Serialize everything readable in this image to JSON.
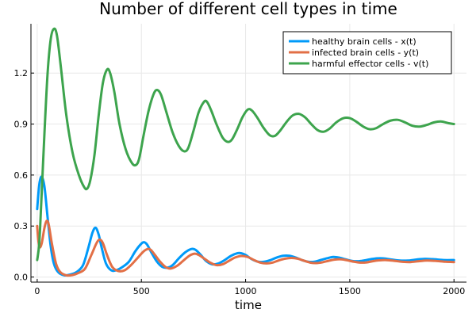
{
  "chart_data": {
    "type": "line",
    "title": "Number of different cell types in time",
    "xlabel": "time",
    "ylabel": "",
    "xlim": [
      -30,
      2060
    ],
    "ylim": [
      -0.03,
      1.49
    ],
    "xticks": [
      0,
      500,
      1000,
      1500,
      2000
    ],
    "xtick_labels": [
      "0",
      "500",
      "1000",
      "1500",
      "2000"
    ],
    "yticks": [
      0.0,
      0.3,
      0.6,
      0.9,
      1.2
    ],
    "ytick_labels": [
      "0.0",
      "0.3",
      "0.6",
      "0.9",
      "1.2"
    ],
    "grid": true,
    "legend_position": "top-right",
    "series": [
      {
        "name": "healthy brain cells - x(t)",
        "color": "#009af9",
        "points": [
          [
            0,
            0.4
          ],
          [
            5,
            0.48
          ],
          [
            12,
            0.56
          ],
          [
            22,
            0.59
          ],
          [
            35,
            0.53
          ],
          [
            50,
            0.35
          ],
          [
            65,
            0.18
          ],
          [
            80,
            0.08
          ],
          [
            100,
            0.03
          ],
          [
            130,
            0.01
          ],
          [
            160,
            0.015
          ],
          [
            190,
            0.03
          ],
          [
            220,
            0.07
          ],
          [
            245,
            0.17
          ],
          [
            265,
            0.26
          ],
          [
            280,
            0.29
          ],
          [
            295,
            0.25
          ],
          [
            310,
            0.17
          ],
          [
            330,
            0.08
          ],
          [
            355,
            0.04
          ],
          [
            380,
            0.04
          ],
          [
            410,
            0.06
          ],
          [
            440,
            0.09
          ],
          [
            470,
            0.15
          ],
          [
            495,
            0.19
          ],
          [
            512,
            0.205
          ],
          [
            528,
            0.19
          ],
          [
            550,
            0.14
          ],
          [
            575,
            0.09
          ],
          [
            600,
            0.06
          ],
          [
            625,
            0.055
          ],
          [
            650,
            0.07
          ],
          [
            680,
            0.11
          ],
          [
            710,
            0.145
          ],
          [
            740,
            0.165
          ],
          [
            760,
            0.16
          ],
          [
            785,
            0.13
          ],
          [
            810,
            0.095
          ],
          [
            840,
            0.075
          ],
          [
            870,
            0.08
          ],
          [
            900,
            0.1
          ],
          [
            930,
            0.125
          ],
          [
            960,
            0.14
          ],
          [
            980,
            0.14
          ],
          [
            1000,
            0.13
          ],
          [
            1030,
            0.105
          ],
          [
            1060,
            0.09
          ],
          [
            1090,
            0.09
          ],
          [
            1120,
            0.1
          ],
          [
            1150,
            0.115
          ],
          [
            1180,
            0.125
          ],
          [
            1210,
            0.125
          ],
          [
            1240,
            0.115
          ],
          [
            1270,
            0.1
          ],
          [
            1300,
            0.09
          ],
          [
            1330,
            0.09
          ],
          [
            1360,
            0.1
          ],
          [
            1390,
            0.11
          ],
          [
            1420,
            0.118
          ],
          [
            1450,
            0.114
          ],
          [
            1480,
            0.104
          ],
          [
            1510,
            0.095
          ],
          [
            1540,
            0.093
          ],
          [
            1570,
            0.098
          ],
          [
            1600,
            0.105
          ],
          [
            1630,
            0.11
          ],
          [
            1660,
            0.11
          ],
          [
            1700,
            0.103
          ],
          [
            1740,
            0.097
          ],
          [
            1780,
            0.097
          ],
          [
            1820,
            0.103
          ],
          [
            1860,
            0.107
          ],
          [
            1900,
            0.105
          ],
          [
            1950,
            0.1
          ],
          [
            2000,
            0.1
          ]
        ]
      },
      {
        "name": "infected brain cells - y(t)",
        "color": "#e26f46",
        "points": [
          [
            0,
            0.3
          ],
          [
            5,
            0.22
          ],
          [
            12,
            0.175
          ],
          [
            22,
            0.2
          ],
          [
            35,
            0.29
          ],
          [
            45,
            0.33
          ],
          [
            55,
            0.31
          ],
          [
            70,
            0.2
          ],
          [
            90,
            0.08
          ],
          [
            110,
            0.03
          ],
          [
            140,
            0.01
          ],
          [
            170,
            0.012
          ],
          [
            200,
            0.025
          ],
          [
            230,
            0.05
          ],
          [
            260,
            0.13
          ],
          [
            285,
            0.2
          ],
          [
            300,
            0.22
          ],
          [
            315,
            0.2
          ],
          [
            335,
            0.13
          ],
          [
            360,
            0.06
          ],
          [
            390,
            0.035
          ],
          [
            420,
            0.04
          ],
          [
            450,
            0.07
          ],
          [
            480,
            0.11
          ],
          [
            510,
            0.15
          ],
          [
            530,
            0.165
          ],
          [
            545,
            0.16
          ],
          [
            565,
            0.13
          ],
          [
            590,
            0.09
          ],
          [
            615,
            0.06
          ],
          [
            640,
            0.05
          ],
          [
            670,
            0.065
          ],
          [
            700,
            0.095
          ],
          [
            730,
            0.125
          ],
          [
            755,
            0.137
          ],
          [
            775,
            0.13
          ],
          [
            800,
            0.11
          ],
          [
            830,
            0.085
          ],
          [
            860,
            0.07
          ],
          [
            890,
            0.075
          ],
          [
            920,
            0.095
          ],
          [
            950,
            0.115
          ],
          [
            980,
            0.124
          ],
          [
            1010,
            0.118
          ],
          [
            1040,
            0.1
          ],
          [
            1070,
            0.085
          ],
          [
            1100,
            0.08
          ],
          [
            1130,
            0.085
          ],
          [
            1160,
            0.098
          ],
          [
            1190,
            0.108
          ],
          [
            1220,
            0.112
          ],
          [
            1250,
            0.108
          ],
          [
            1280,
            0.096
          ],
          [
            1310,
            0.085
          ],
          [
            1340,
            0.082
          ],
          [
            1370,
            0.087
          ],
          [
            1400,
            0.096
          ],
          [
            1430,
            0.103
          ],
          [
            1460,
            0.104
          ],
          [
            1490,
            0.098
          ],
          [
            1520,
            0.09
          ],
          [
            1550,
            0.085
          ],
          [
            1580,
            0.086
          ],
          [
            1610,
            0.093
          ],
          [
            1640,
            0.098
          ],
          [
            1670,
            0.1
          ],
          [
            1710,
            0.096
          ],
          [
            1750,
            0.09
          ],
          [
            1790,
            0.088
          ],
          [
            1830,
            0.093
          ],
          [
            1870,
            0.097
          ],
          [
            1910,
            0.095
          ],
          [
            1960,
            0.09
          ],
          [
            2000,
            0.088
          ]
        ]
      },
      {
        "name": "harmful effector cells - v(t)",
        "color": "#3da44d",
        "points": [
          [
            0,
            0.1
          ],
          [
            10,
            0.2
          ],
          [
            20,
            0.45
          ],
          [
            35,
            0.85
          ],
          [
            50,
            1.2
          ],
          [
            65,
            1.4
          ],
          [
            80,
            1.46
          ],
          [
            95,
            1.42
          ],
          [
            115,
            1.22
          ],
          [
            140,
            0.95
          ],
          [
            170,
            0.73
          ],
          [
            200,
            0.6
          ],
          [
            225,
            0.53
          ],
          [
            240,
            0.52
          ],
          [
            255,
            0.57
          ],
          [
            275,
            0.72
          ],
          [
            295,
            0.95
          ],
          [
            315,
            1.14
          ],
          [
            335,
            1.22
          ],
          [
            350,
            1.2
          ],
          [
            370,
            1.09
          ],
          [
            395,
            0.9
          ],
          [
            425,
            0.75
          ],
          [
            455,
            0.67
          ],
          [
            475,
            0.66
          ],
          [
            490,
            0.7
          ],
          [
            510,
            0.83
          ],
          [
            535,
            0.98
          ],
          [
            560,
            1.08
          ],
          [
            577,
            1.1
          ],
          [
            595,
            1.07
          ],
          [
            620,
            0.97
          ],
          [
            650,
            0.85
          ],
          [
            680,
            0.77
          ],
          [
            705,
            0.74
          ],
          [
            725,
            0.76
          ],
          [
            750,
            0.86
          ],
          [
            775,
            0.97
          ],
          [
            800,
            1.03
          ],
          [
            815,
            1.03
          ],
          [
            835,
            0.98
          ],
          [
            860,
            0.9
          ],
          [
            890,
            0.82
          ],
          [
            915,
            0.795
          ],
          [
            935,
            0.81
          ],
          [
            960,
            0.87
          ],
          [
            985,
            0.94
          ],
          [
            1010,
            0.985
          ],
          [
            1030,
            0.98
          ],
          [
            1055,
            0.94
          ],
          [
            1085,
            0.88
          ],
          [
            1115,
            0.835
          ],
          [
            1140,
            0.83
          ],
          [
            1165,
            0.86
          ],
          [
            1195,
            0.91
          ],
          [
            1225,
            0.95
          ],
          [
            1255,
            0.96
          ],
          [
            1285,
            0.94
          ],
          [
            1315,
            0.9
          ],
          [
            1345,
            0.865
          ],
          [
            1375,
            0.855
          ],
          [
            1405,
            0.875
          ],
          [
            1435,
            0.91
          ],
          [
            1470,
            0.935
          ],
          [
            1500,
            0.935
          ],
          [
            1530,
            0.915
          ],
          [
            1565,
            0.885
          ],
          [
            1595,
            0.87
          ],
          [
            1625,
            0.875
          ],
          [
            1660,
            0.9
          ],
          [
            1695,
            0.92
          ],
          [
            1730,
            0.925
          ],
          [
            1765,
            0.91
          ],
          [
            1800,
            0.89
          ],
          [
            1835,
            0.885
          ],
          [
            1870,
            0.895
          ],
          [
            1905,
            0.91
          ],
          [
            1940,
            0.915
          ],
          [
            1975,
            0.905
          ],
          [
            2000,
            0.9
          ]
        ]
      }
    ]
  }
}
